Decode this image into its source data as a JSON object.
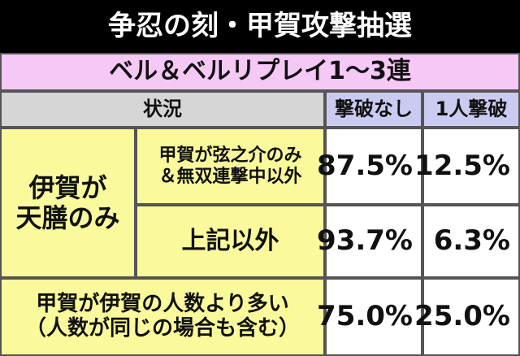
{
  "header": {
    "title": "争忍の刻・甲賀攻撃抽選",
    "subtitle": "ベル＆ベルリプレイ1～3連"
  },
  "table": {
    "columns": [
      "状況",
      "撃破なし",
      "1人撃破"
    ],
    "group": [
      "伊賀が",
      "天膳のみ"
    ],
    "rows": [
      {
        "condition": [
          "甲賀が弦之介のみ",
          "＆無双連撃中以外"
        ],
        "values": [
          "87.5%",
          "12.5%"
        ]
      },
      {
        "condition": [
          "上記以外"
        ],
        "values": [
          "93.7%",
          "6.3%"
        ]
      },
      {
        "condition": [
          "甲賀が伊賀の人数より多い",
          "（人数が同じの場合も含む）"
        ],
        "values": [
          "75.0%",
          "25.0%"
        ]
      }
    ]
  }
}
